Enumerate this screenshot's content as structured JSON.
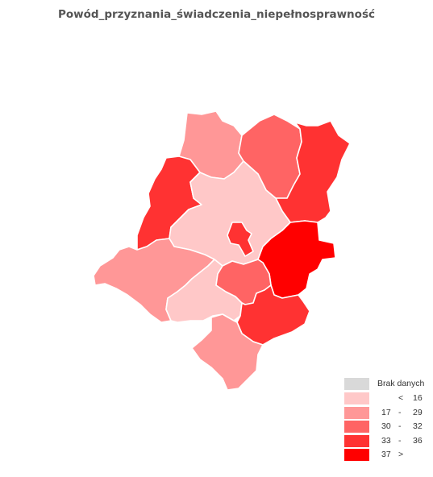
{
  "title": "Powód_przyznania_świadczenia_niepełnosprawność",
  "legend": {
    "no_data": {
      "label": "Brak danych",
      "color": "#d9d9d9"
    },
    "classes": [
      {
        "from": "",
        "sep": "<",
        "to": "16",
        "color": "#ffc8c8"
      },
      {
        "from": "17",
        "sep": "-",
        "to": "29",
        "color": "#ff9797"
      },
      {
        "from": "30",
        "sep": "-",
        "to": "32",
        "color": "#ff6464"
      },
      {
        "from": "33",
        "sep": "-",
        "to": "36",
        "color": "#ff3232"
      },
      {
        "from": "37",
        "sep": ">",
        "to": "",
        "color": "#ff0000"
      }
    ]
  },
  "regions": [
    {
      "id": "north",
      "class": 1
    },
    {
      "id": "north-east",
      "class": 2
    },
    {
      "id": "east",
      "class": 3
    },
    {
      "id": "west",
      "class": 3
    },
    {
      "id": "central",
      "class": 0
    },
    {
      "id": "city",
      "class": 3
    },
    {
      "id": "far-east",
      "class": 4
    },
    {
      "id": "south-west",
      "class": 1
    },
    {
      "id": "south-central",
      "class": 0
    },
    {
      "id": "south-middle",
      "class": 2
    },
    {
      "id": "south-east",
      "class": 3
    },
    {
      "id": "south",
      "class": 1
    }
  ]
}
